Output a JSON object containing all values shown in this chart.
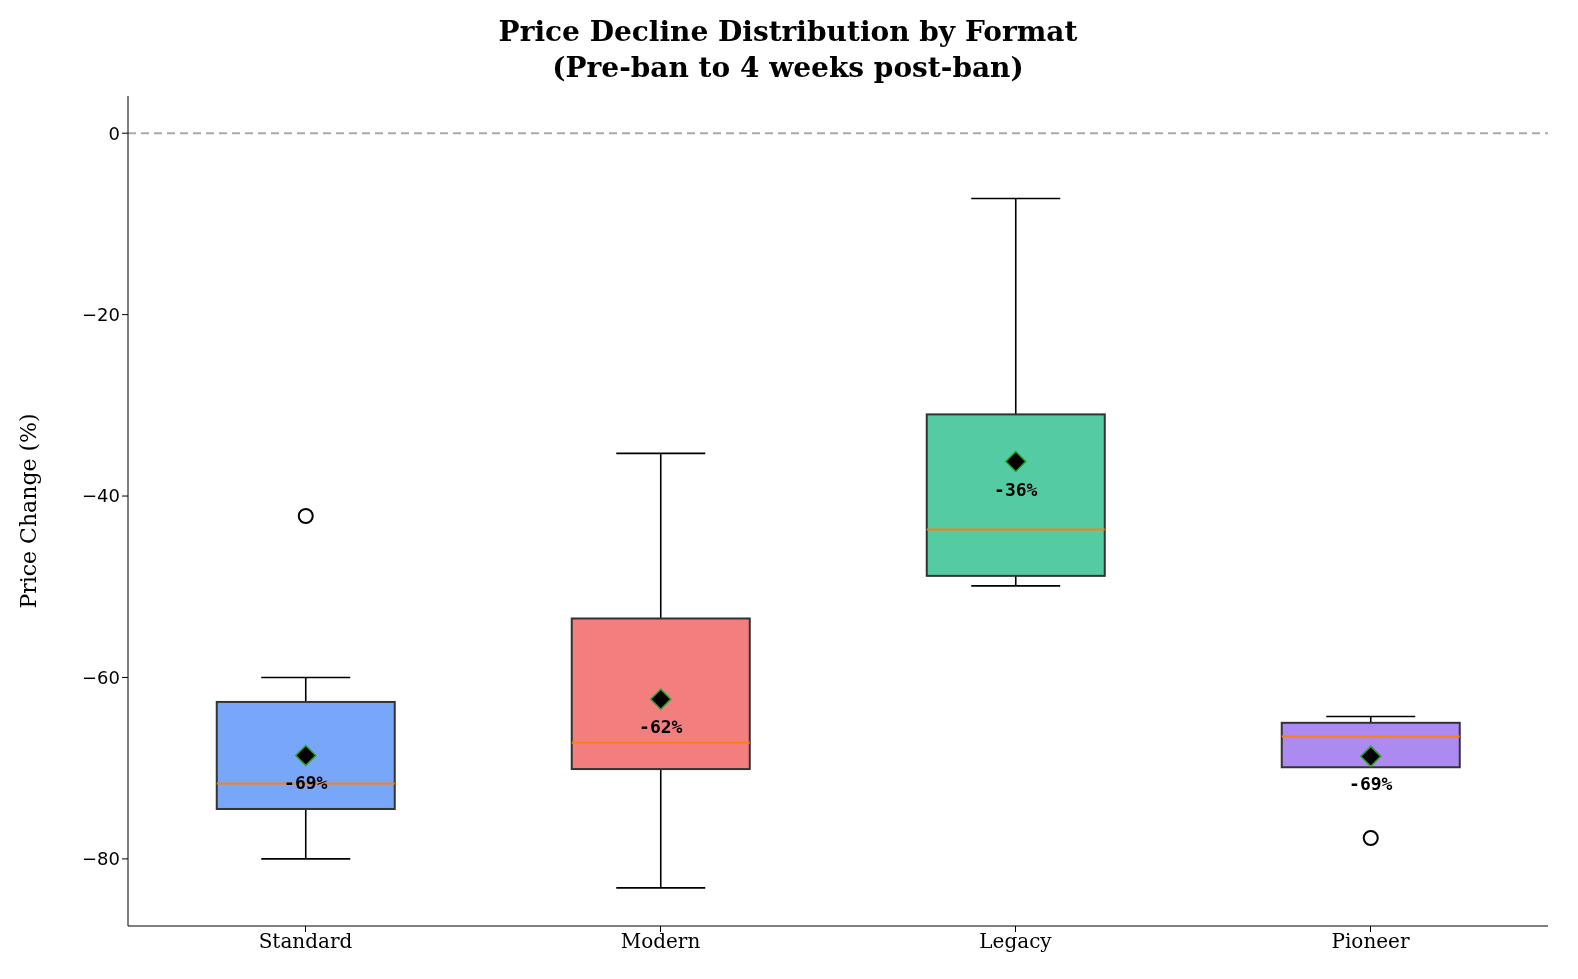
{
  "chart_data": {
    "type": "box",
    "title": "Price Decline Distribution by Format\n(Pre-ban to 4 weeks post-ban)",
    "ylabel": "Price Change (%)",
    "categories": [
      "Standard",
      "Modern",
      "Legacy",
      "Pioneer"
    ],
    "colors": [
      "#78a6f8",
      "#f27e7e",
      "#55cba3",
      "#ad8af2"
    ],
    "boxes": [
      {
        "low": -80,
        "q1": -74.5,
        "median": -71.7,
        "q3": -62.7,
        "high": -60,
        "mean": -68.6,
        "outliers": [
          -42.2
        ]
      },
      {
        "low": -83.2,
        "q1": -70.1,
        "median": -67.2,
        "q3": -53.5,
        "high": -35.3,
        "mean": -62.4
      },
      {
        "low": -49.9,
        "q1": -48.8,
        "median": -43.7,
        "q3": -31,
        "high": -7.2,
        "mean": -36.2
      },
      {
        "low": -69.9,
        "q1": -69.9,
        "median": -66.5,
        "q3": -65,
        "high": -64.3,
        "mean": -68.7,
        "outliers": [
          -77.7
        ]
      }
    ],
    "ylim": [
      -87.4,
      4.1
    ],
    "yticks": [
      -80,
      -60,
      -40,
      -20,
      0
    ],
    "ref_lines": [
      {
        "axis": "y",
        "value": 0,
        "color": "#aaaaaa",
        "line_style": "dashed"
      }
    ],
    "annotations": [
      "-69%",
      "-62%",
      "-36%",
      "-69%"
    ],
    "grid": false,
    "legend": false
  }
}
